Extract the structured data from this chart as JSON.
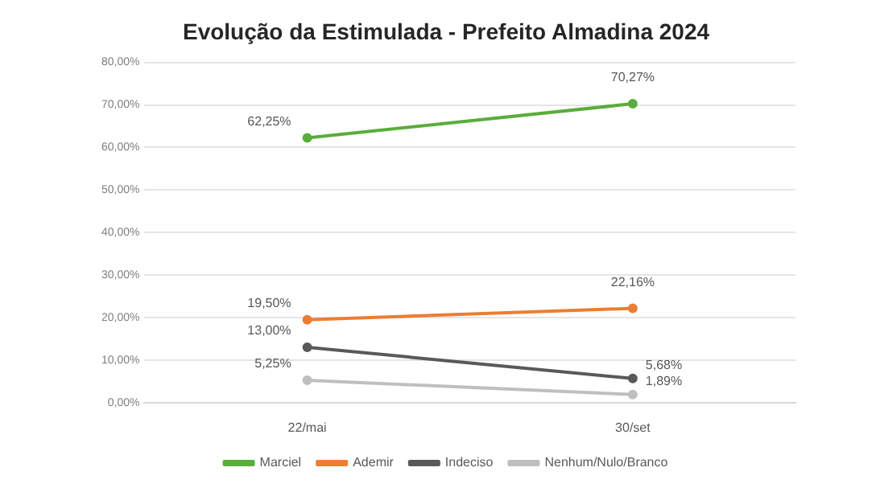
{
  "chart_data": {
    "type": "line",
    "title": "Evolução da Estimulada - Prefeito Almadina 2024",
    "categories": [
      "22/mai",
      "30/set"
    ],
    "series": [
      {
        "name": "Marciel",
        "color": "#5aad3c",
        "values": [
          62.25,
          70.27
        ],
        "value_labels": [
          "62,25%",
          "70,27%"
        ]
      },
      {
        "name": "Ademir",
        "color": "#ed7d31",
        "values": [
          19.5,
          22.16
        ],
        "value_labels": [
          "19,50%",
          "22,16%"
        ]
      },
      {
        "name": "Indeciso",
        "color": "#595959",
        "values": [
          13.0,
          5.68
        ],
        "value_labels": [
          "13,00%",
          "5,68%"
        ]
      },
      {
        "name": "Nenhum/Nulo/Branco",
        "color": "#bfbfbf",
        "values": [
          5.25,
          1.89
        ],
        "value_labels": [
          "5,25%",
          "1,89%"
        ]
      }
    ],
    "ylim": [
      0,
      80
    ],
    "yticks": [
      {
        "value": 0,
        "label": "0,00%"
      },
      {
        "value": 10,
        "label": "10,00%"
      },
      {
        "value": 20,
        "label": "20,00%"
      },
      {
        "value": 30,
        "label": "30,00%"
      },
      {
        "value": 40,
        "label": "40,00%"
      },
      {
        "value": 50,
        "label": "50,00%"
      },
      {
        "value": 60,
        "label": "60,00%"
      },
      {
        "value": 70,
        "label": "70,00%"
      },
      {
        "value": 80,
        "label": "80,00%"
      }
    ],
    "grid": "y",
    "legend": "bottom",
    "marker": "circle",
    "line_style": "solid"
  }
}
